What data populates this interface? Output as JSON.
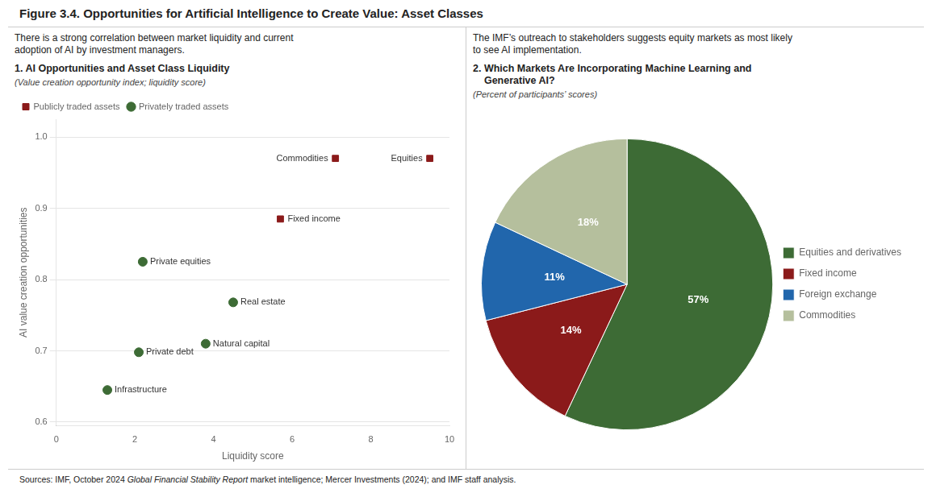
{
  "title": "Figure 3.4. Opportunities for Artificial Intelligence to Create Value: Asset Classes",
  "subtitles": [
    "There is a strong correlation between market liquidity and current\nadoption of AI by investment managers.",
    "The IMF’s outreach to stakeholders suggests equity markets as most likely\nto see AI implementation."
  ],
  "source": {
    "text": "Sources: IMF, October 2024 ",
    "italic": "Global Financial Stability Report",
    "rest": " market intelligence; Mercer Investments (2024); and IMF staff analysis."
  },
  "chart_data": [
    {
      "type": "scatter",
      "title": "1. AI Opportunities and Asset Class Liquidity",
      "subtitle": "(Value creation opportunity index; liquidity score)",
      "xlabel": "Liquidity score",
      "ylabel": "AI value creation opportunities",
      "xlim": [
        0,
        10
      ],
      "xticks": [
        0,
        2,
        4,
        6,
        8,
        10
      ],
      "ylim": [
        0.595,
        1.025
      ],
      "yticks": [
        0.6,
        0.7,
        0.8,
        0.9,
        {
          "value": 1.0,
          "label": "1.0"
        }
      ],
      "grid": "y",
      "legend": "upper left",
      "series": [
        {
          "name": "Publicly traded assets",
          "color": "#8b1a1a",
          "marker": "square",
          "x": [
            9.5,
            7.1,
            5.7
          ],
          "values": [
            0.97,
            0.97,
            0.885
          ],
          "point_labels": [
            "Equities",
            "Commodities",
            "Fixed income"
          ]
        },
        {
          "name": "Privately traded assets",
          "color": "#3d6b35",
          "marker": "circle",
          "x": [
            2.2,
            4.5,
            3.8,
            2.1,
            1.3
          ],
          "values": [
            0.825,
            0.768,
            0.71,
            0.698,
            0.645
          ],
          "point_labels": [
            "Private equities",
            "Real estate",
            "Natural capital",
            "Private debt",
            "Infrastructure"
          ]
        }
      ]
    },
    {
      "type": "pie",
      "title": "2. Which Markets Are Incorporating Machine Learning and\n    Generative AI?",
      "subtitle": "(Percent of participants’ scores)",
      "categories": [
        "Equities and derivatives",
        "Fixed income",
        "Foreign exchange",
        "Commodities"
      ],
      "values": [
        57,
        14,
        11,
        18
      ],
      "value_labels": [
        "57%",
        "14%",
        "11%",
        "18%"
      ],
      "colors": [
        "#3d6b35",
        "#8b1a1a",
        "#2166ac",
        "#b5bf9d"
      ],
      "data_labels": true,
      "legend": "right"
    }
  ]
}
